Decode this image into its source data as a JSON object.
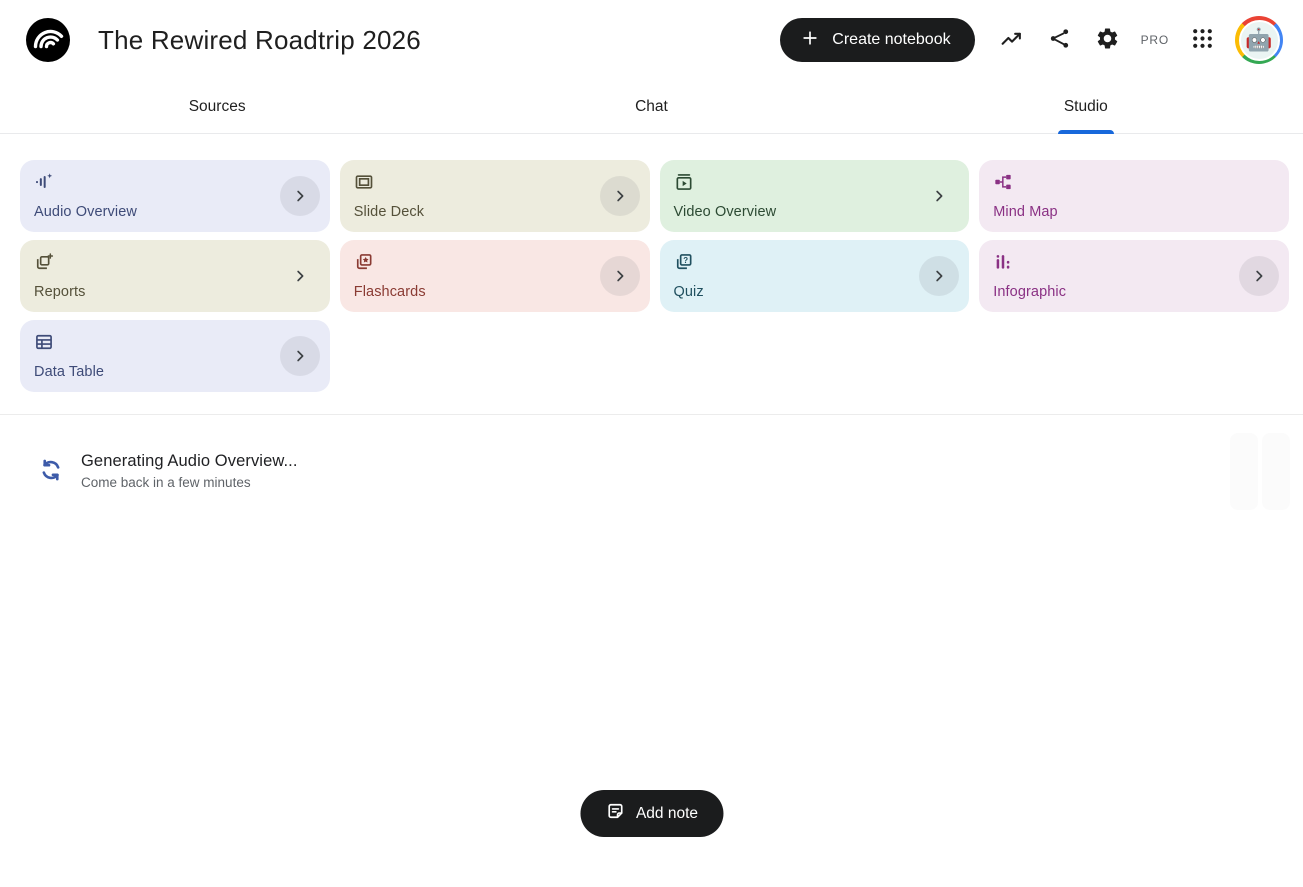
{
  "header": {
    "title": "The Rewired Roadtrip 2026",
    "create_notebook_label": "Create notebook",
    "plan_badge": "PRO",
    "icons": [
      "trending-up-icon",
      "share-icon",
      "settings-gear-icon",
      "apps-grid-icon"
    ]
  },
  "tabs": [
    {
      "label": "Sources",
      "active": false
    },
    {
      "label": "Chat",
      "active": false
    },
    {
      "label": "Studio",
      "active": true
    }
  ],
  "colors": {
    "accent_blue": "#1868DB",
    "button_black": "#1B1C1D",
    "status_icon_blue": "#3D5BA9"
  },
  "studio": {
    "cards": [
      {
        "label": "Audio Overview",
        "icon": "audio-waveform-sparkle-icon",
        "bg": "#E9EBF7",
        "fg": "#3E4B78",
        "chevron": "circle"
      },
      {
        "label": "Slide Deck",
        "icon": "slide-deck-icon",
        "bg": "#EDECDE",
        "fg": "#55513A",
        "chevron": "circle"
      },
      {
        "label": "Video Overview",
        "icon": "video-overview-icon",
        "bg": "#DFF0DF",
        "fg": "#2C4A33",
        "chevron": "plain"
      },
      {
        "label": "Mind Map",
        "icon": "mind-map-icon",
        "bg": "#F3E9F2",
        "fg": "#8A3184",
        "chevron": "none"
      },
      {
        "label": "Reports",
        "icon": "reports-add-icon",
        "bg": "#EDECDE",
        "fg": "#55513A",
        "chevron": "plain"
      },
      {
        "label": "Flashcards",
        "icon": "flashcards-star-icon",
        "bg": "#F9E7E4",
        "fg": "#8A3B33",
        "chevron": "circle"
      },
      {
        "label": "Quiz",
        "icon": "quiz-question-icon",
        "bg": "#DFF1F6",
        "fg": "#20505F",
        "chevron": "circle"
      },
      {
        "label": "Infographic",
        "icon": "bar-chart-icon",
        "bg": "#F3E9F2",
        "fg": "#8A3184",
        "chevron": "circle"
      },
      {
        "label": "Data Table",
        "icon": "data-table-icon",
        "bg": "#E9EBF7",
        "fg": "#3E4B78",
        "chevron": "circle"
      }
    ],
    "status": {
      "title": "Generating Audio Overview...",
      "subtitle": "Come back in a few minutes"
    },
    "add_note_label": "Add note"
  }
}
